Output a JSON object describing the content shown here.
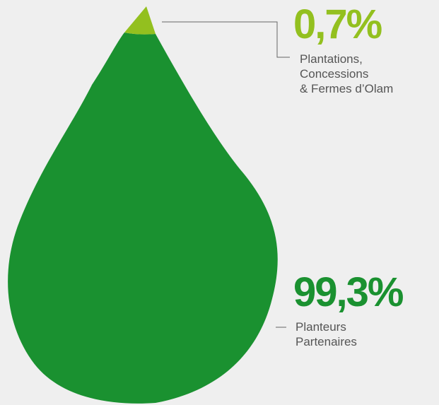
{
  "chart_data": {
    "type": "pie",
    "segments": [
      {
        "value": 0.7,
        "value_label": "0,7%",
        "label_lines": [
          "Plantations,",
          "Concessions",
          "& Fermes d’Olam"
        ],
        "color": "#93c01f"
      },
      {
        "value": 99.3,
        "value_label": "99,3%",
        "label_lines": [
          "Planteurs",
          "Partenaires"
        ],
        "color": "#1a9130"
      }
    ]
  },
  "colors": {
    "background": "#efefef",
    "caption_text": "#555555",
    "leader_line": "#666666"
  }
}
